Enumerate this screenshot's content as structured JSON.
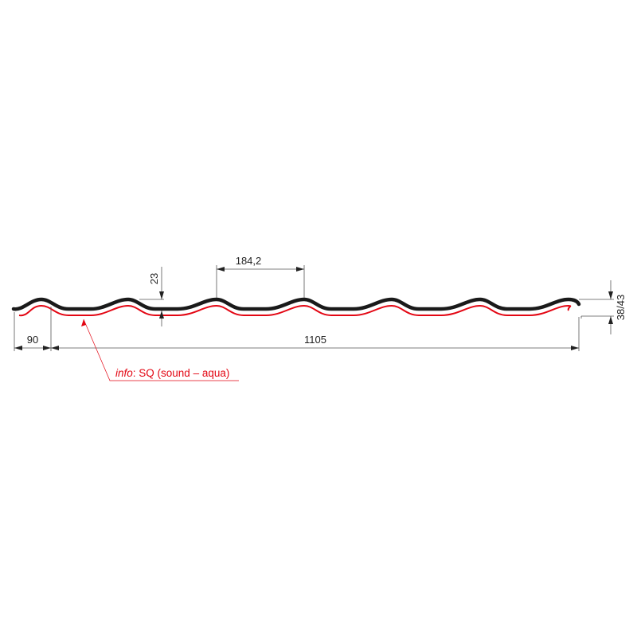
{
  "drawing": {
    "dimensions": {
      "edge_width": "90",
      "cover_width": "1105",
      "wave_pitch": "184,2",
      "wave_height": "23",
      "total_height": "38/43"
    },
    "annotation": {
      "label_italic": "info",
      "label_rest": ": SQ (sound – aqua)"
    },
    "colors": {
      "profile": "#1a1a1a",
      "coating_layer": "#e30613",
      "dimension_lines": "#555555",
      "annotation": "#e30613"
    }
  }
}
